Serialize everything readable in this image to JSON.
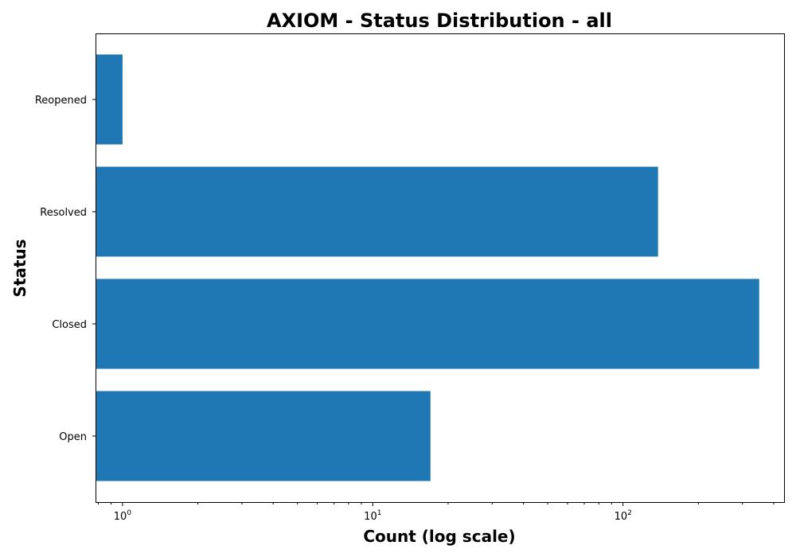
{
  "chart_data": {
    "type": "bar",
    "orientation": "horizontal",
    "title": "AXIOM - Status Distribution - all",
    "xlabel": "Count (log scale)",
    "ylabel": "Status",
    "x_scale": "log",
    "xlim": [
      0.78,
      440
    ],
    "categories": [
      "Open",
      "Closed",
      "Resolved",
      "Reopened"
    ],
    "values": [
      17,
      350,
      138,
      1
    ],
    "x_ticks": [
      {
        "value": 1,
        "base": "10",
        "exp": "0"
      },
      {
        "value": 10,
        "base": "10",
        "exp": "1"
      },
      {
        "value": 100,
        "base": "10",
        "exp": "2"
      }
    ],
    "bar_color": "#1f77b4",
    "grid": false,
    "legend": "none"
  }
}
